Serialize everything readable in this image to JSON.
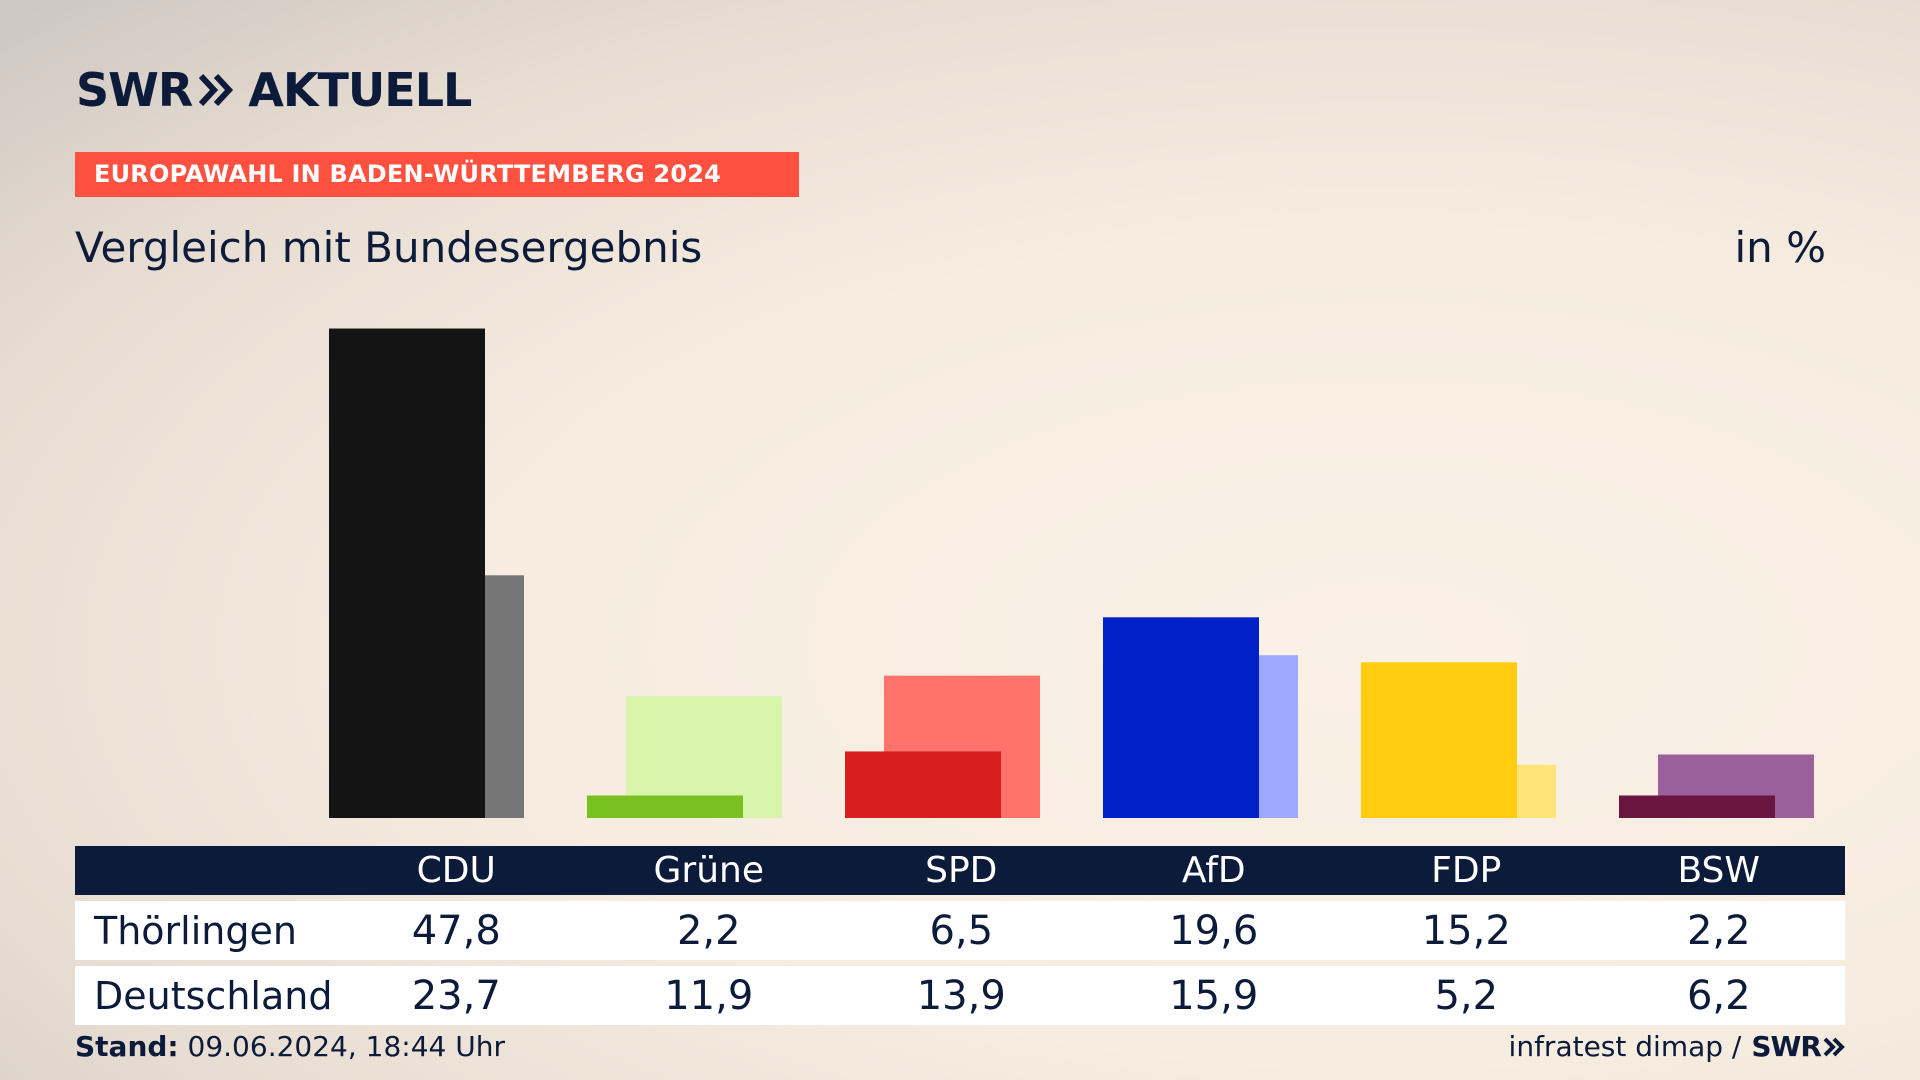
{
  "header": {
    "logo_swr": "SWR",
    "logo_aktuell": "AKTUELL",
    "banner": "EUROPAWAHL IN BADEN-WÜRTTEMBERG 2024",
    "subtitle": "Vergleich mit Bundesergebnis",
    "unit": "in %"
  },
  "chart_data": {
    "type": "bar",
    "title": "Vergleich mit Bundesergebnis",
    "ylabel": "in %",
    "ylim": [
      0,
      50
    ],
    "grid": false,
    "categories": [
      "CDU",
      "Grüne",
      "SPD",
      "AfD",
      "FDP",
      "BSW"
    ],
    "series": [
      {
        "name": "Thörlingen",
        "values": [
          47.8,
          2.2,
          6.5,
          19.6,
          15.2,
          2.2
        ],
        "colors": [
          "#141414",
          "#7ac020",
          "#d81e1e",
          "#0020c8",
          "#ffcc10",
          "#6a1640"
        ]
      },
      {
        "name": "Deutschland",
        "values": [
          23.7,
          11.9,
          13.9,
          15.9,
          5.2,
          6.2
        ],
        "colors": [
          "#767676",
          "#d8f5ab",
          "#ff736c",
          "#9eaaff",
          "#ffe47a",
          "#9b5f9b"
        ]
      }
    ]
  },
  "table": {
    "columns": [
      "",
      "CDU",
      "Grüne",
      "SPD",
      "AfD",
      "FDP",
      "BSW"
    ],
    "rows": [
      {
        "region": "Thörlingen",
        "values": [
          "47,8",
          "2,2",
          "6,5",
          "19,6",
          "15,2",
          "2,2"
        ]
      },
      {
        "region": "Deutschland",
        "values": [
          "23,7",
          "11,9",
          "13,9",
          "15,9",
          "5,2",
          "6,2"
        ]
      }
    ]
  },
  "footer": {
    "stand_label": "Stand:",
    "stand_value": "09.06.2024, 18:44 Uhr",
    "source": "infratest dimap /",
    "source_logo": "SWR"
  },
  "colors": {
    "navy": "#0d1b3a",
    "accent": "#ff5040"
  }
}
